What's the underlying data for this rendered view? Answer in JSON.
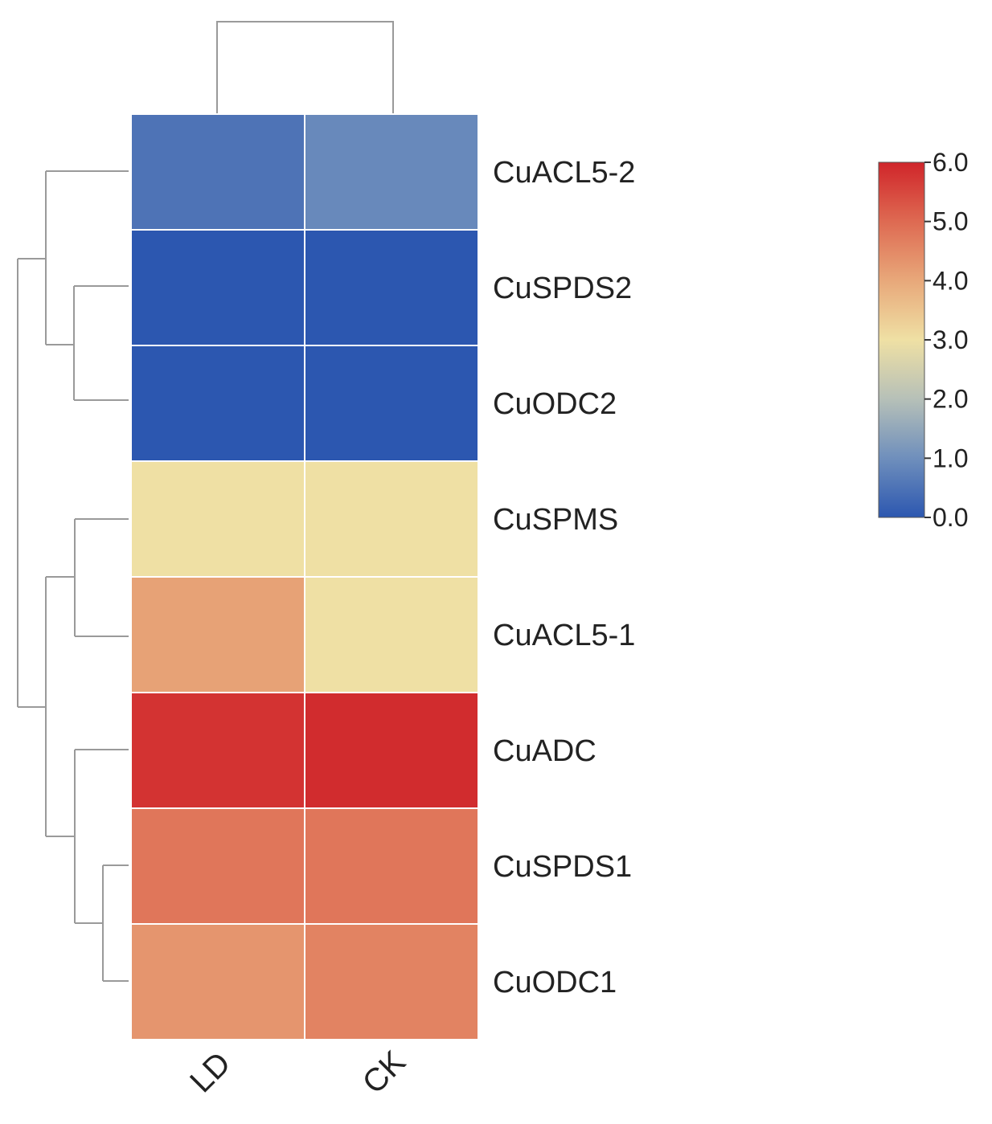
{
  "chart_data": {
    "type": "heatmap",
    "title": "",
    "xlabel": "",
    "ylabel": "",
    "columns": [
      "LD",
      "CK"
    ],
    "rows": [
      "CuACL5-2",
      "CuSPDS2",
      "CuODC2",
      "CuSPMS",
      "CuACL5-1",
      "CuADC",
      "CuSPDS1",
      "CuODC1"
    ],
    "values": [
      [
        0.5,
        0.9
      ],
      [
        0.0,
        0.0
      ],
      [
        0.0,
        0.0
      ],
      [
        3.0,
        3.0
      ],
      [
        4.1,
        3.0
      ],
      [
        5.8,
        5.9
      ],
      [
        4.8,
        4.8
      ],
      [
        4.3,
        4.6
      ]
    ],
    "colorbar": {
      "min": 0.0,
      "max": 6.0,
      "ticks": [
        "0.0",
        "1.0",
        "2.0",
        "3.0",
        "4.0",
        "5.0",
        "6.0"
      ],
      "colors": [
        "#2c57b0",
        "#6f8fbc",
        "#b6c0b8",
        "#efe0a4",
        "#e8a87a",
        "#de6a52",
        "#d0252a"
      ]
    },
    "row_dendrogram": true,
    "column_dendrogram": true
  }
}
